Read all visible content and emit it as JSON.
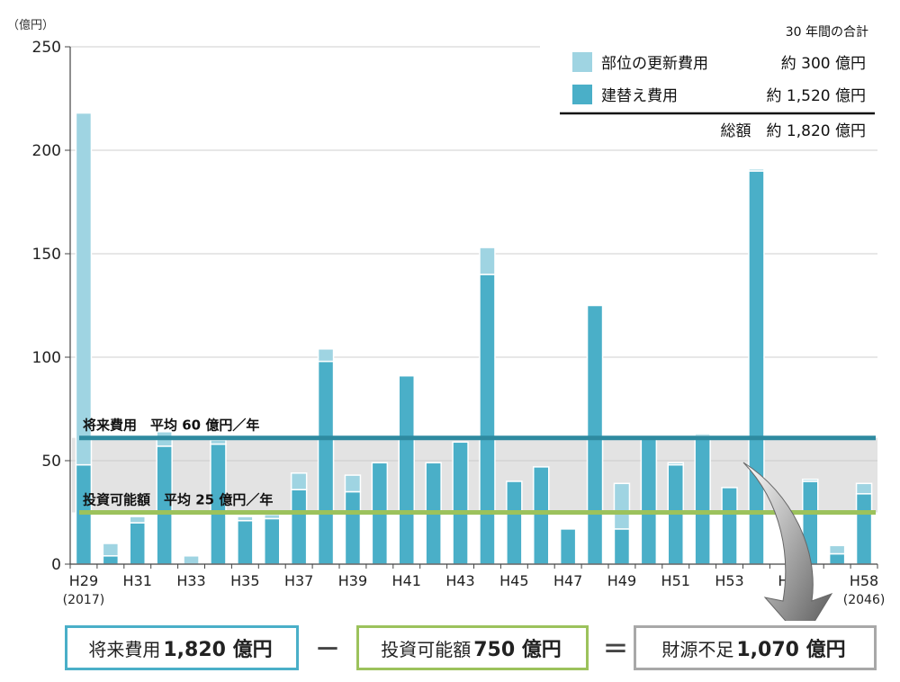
{
  "chart_data": {
    "type": "bar",
    "unit_label": "（億円）",
    "ylim": [
      0,
      250
    ],
    "yticks": [
      0,
      50,
      100,
      150,
      200,
      250
    ],
    "categories": [
      "H29",
      "H30",
      "H31",
      "H32",
      "H33",
      "H34",
      "H35",
      "H36",
      "H37",
      "H38",
      "H39",
      "H40",
      "H41",
      "H42",
      "H43",
      "H44",
      "H45",
      "H46",
      "H47",
      "H48",
      "H49",
      "H50",
      "H51",
      "H52",
      "H53",
      "H54",
      "H55",
      "H56",
      "H57",
      "H58"
    ],
    "x_tick_labels": [
      {
        "index": 0,
        "label": "H29",
        "sub": "(2017)"
      },
      {
        "index": 2,
        "label": "H31"
      },
      {
        "index": 4,
        "label": "H33"
      },
      {
        "index": 6,
        "label": "H35"
      },
      {
        "index": 8,
        "label": "H37"
      },
      {
        "index": 10,
        "label": "H39"
      },
      {
        "index": 12,
        "label": "H41"
      },
      {
        "index": 14,
        "label": "H43"
      },
      {
        "index": 16,
        "label": "H45"
      },
      {
        "index": 18,
        "label": "H47"
      },
      {
        "index": 20,
        "label": "H49"
      },
      {
        "index": 22,
        "label": "H51"
      },
      {
        "index": 24,
        "label": "H53"
      },
      {
        "index": 26,
        "label": "H"
      },
      {
        "index": 29,
        "label": "H58",
        "sub": "(2046)"
      }
    ],
    "series": [
      {
        "name": "建替え費用",
        "color": "#4aafc8",
        "values": [
          48,
          4,
          20,
          57,
          0,
          58,
          21,
          22,
          36,
          98,
          35,
          49,
          91,
          49,
          59,
          140,
          40,
          47,
          17,
          125,
          17,
          61,
          48,
          62,
          37,
          190,
          0,
          40,
          5,
          34
        ]
      },
      {
        "name": "部位の更新費用",
        "color": "#9fd4e2",
        "values": [
          170,
          6,
          3,
          7,
          4,
          2,
          2,
          2,
          8,
          6,
          8,
          0,
          0,
          0,
          0,
          13,
          0,
          0,
          0,
          0,
          22,
          0,
          1,
          1,
          0,
          1,
          0,
          1,
          4,
          5
        ]
      }
    ],
    "legend": {
      "position": "top-right",
      "header": "30 年間の合計",
      "entries": [
        {
          "label": "部位の更新費用",
          "value": "約 300 億円",
          "color": "#9fd4e2"
        },
        {
          "label": "建替え費用",
          "value": "約 1,520 億円",
          "color": "#4aafc8"
        }
      ],
      "total": "総額　約 1,820 億円"
    },
    "reference_lines": [
      {
        "label": "将来費用　平均 60 億円／年",
        "value": 61,
        "color": "#2e8aa0"
      },
      {
        "label": "投資可能額　平均 25 億円／年",
        "value": 25,
        "color": "#9cc25c"
      }
    ],
    "shaded_band": [
      25,
      61
    ]
  },
  "equation": {
    "box1": {
      "label": "将来費用",
      "value": "1,820 億円",
      "color": "#4aafc8"
    },
    "minus": "－",
    "box2": {
      "label": "投資可能額",
      "value": "750 億円",
      "color": "#9cc25c"
    },
    "equals": "＝",
    "box3": {
      "label": "財源不足",
      "value": "1,070 億円",
      "color": "#a8a8a8"
    }
  }
}
